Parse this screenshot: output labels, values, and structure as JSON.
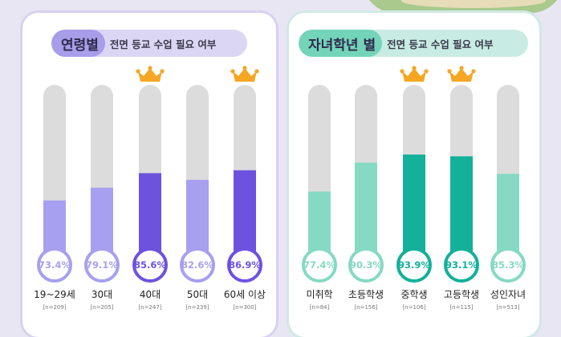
{
  "left": {
    "title_bold": "연령별",
    "title_rest": "전면 등교 수업 필요 여부"
  },
  "right": {
    "title_bold": "자녀학년 별",
    "title_rest": "전면 등교 수업 필요 여부"
  },
  "colors": {
    "track": "#dcdcdc",
    "purple_light": "#a79ff0",
    "purple_dark": "#6d52e0",
    "teal_light": "#86d9c2",
    "teal_dark": "#13b09a",
    "crown": "#f5a623"
  },
  "chart_data": [
    {
      "type": "bar",
      "categories": [
        "19~29세",
        "30대",
        "40대",
        "50대",
        "60세 이상"
      ],
      "sample_sizes": [
        "[n=209]",
        "[n=205]",
        "[n=247]",
        "[n=239]",
        "[n=300]"
      ],
      "values": [
        73.4,
        79.1,
        85.6,
        82.6,
        86.9
      ],
      "value_labels": [
        "73.4%",
        "79.1%",
        "85.6%",
        "82.6%",
        "86.9%"
      ],
      "highlighted": [
        false,
        false,
        true,
        false,
        true
      ],
      "ylim": [
        0,
        100
      ]
    },
    {
      "type": "bar",
      "categories": [
        "미취학",
        "초등학생",
        "중학생",
        "고등학생",
        "성인자녀"
      ],
      "sample_sizes": [
        "[n=84]",
        "[n=156]",
        "[n=106]",
        "[n=115]",
        "[n=513]"
      ],
      "values": [
        77.4,
        90.3,
        93.9,
        93.1,
        85.3
      ],
      "value_labels": [
        "77.4%",
        "90.3%",
        "93.9%",
        "93.1%",
        "85.3%"
      ],
      "highlighted": [
        false,
        false,
        true,
        true,
        false
      ],
      "ylim": [
        0,
        100
      ]
    }
  ]
}
